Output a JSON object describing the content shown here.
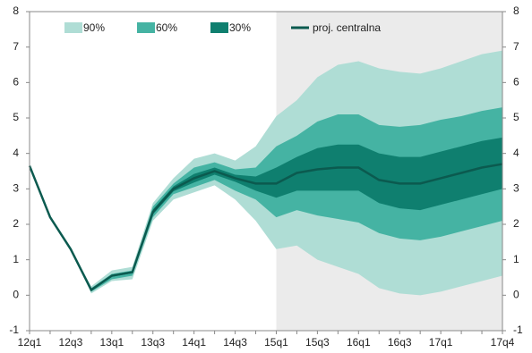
{
  "chart_data": {
    "type": "fan",
    "categories": [
      "12q1",
      null,
      "12q3",
      null,
      "13q1",
      null,
      "13q3",
      null,
      "14q1",
      null,
      "14q3",
      null,
      "15q1",
      null,
      "15q3",
      null,
      "16q1",
      null,
      "16q3",
      null,
      "17q1",
      null,
      null,
      "17q4"
    ],
    "shaded_from": "15q1",
    "ylim": [
      -1,
      8
    ],
    "yticks": [
      -1,
      0,
      1,
      2,
      3,
      4,
      5,
      6,
      7,
      8
    ],
    "bands": [
      {
        "name": "90%",
        "color": "#afddd5",
        "upper": [
          3.65,
          2.2,
          1.3,
          0.25,
          0.7,
          0.8,
          2.6,
          3.3,
          3.85,
          4.0,
          3.8,
          4.2,
          5.05,
          5.5,
          6.15,
          6.5,
          6.6,
          6.4,
          6.3,
          6.25,
          6.4,
          6.6,
          6.8,
          6.9
        ],
        "lower": [
          3.65,
          2.2,
          1.3,
          0.05,
          0.4,
          0.45,
          2.1,
          2.7,
          2.9,
          3.1,
          2.7,
          2.1,
          1.3,
          1.4,
          1.0,
          0.8,
          0.6,
          0.2,
          0.05,
          0.0,
          0.1,
          0.25,
          0.4,
          0.55
        ]
      },
      {
        "name": "60%",
        "color": "#45b3a3",
        "upper": [
          3.65,
          2.2,
          1.3,
          0.2,
          0.6,
          0.7,
          2.5,
          3.15,
          3.6,
          3.75,
          3.55,
          3.6,
          4.2,
          4.5,
          4.9,
          5.1,
          5.1,
          4.8,
          4.75,
          4.8,
          4.95,
          5.05,
          5.2,
          5.3
        ],
        "lower": [
          3.65,
          2.2,
          1.3,
          0.1,
          0.45,
          0.55,
          2.2,
          2.85,
          3.05,
          3.25,
          2.95,
          2.7,
          2.2,
          2.4,
          2.25,
          2.15,
          2.05,
          1.75,
          1.6,
          1.55,
          1.65,
          1.8,
          1.95,
          2.1
        ]
      },
      {
        "name": "30%",
        "color": "#0f7f6f",
        "upper": [
          3.65,
          2.2,
          1.3,
          0.17,
          0.58,
          0.68,
          2.42,
          3.07,
          3.42,
          3.6,
          3.4,
          3.35,
          3.6,
          3.9,
          4.15,
          4.25,
          4.25,
          4.0,
          3.9,
          3.9,
          4.05,
          4.2,
          4.35,
          4.45
        ],
        "lower": [
          3.65,
          2.2,
          1.3,
          0.13,
          0.52,
          0.62,
          2.28,
          2.93,
          3.18,
          3.4,
          3.2,
          2.95,
          2.75,
          2.95,
          2.95,
          2.95,
          2.95,
          2.6,
          2.45,
          2.4,
          2.55,
          2.7,
          2.85,
          3.0
        ]
      }
    ],
    "line": {
      "name": "proj. centralna",
      "color": "#0b5a4f",
      "values": [
        3.65,
        2.2,
        1.3,
        0.15,
        0.55,
        0.65,
        2.35,
        3.0,
        3.3,
        3.5,
        3.3,
        3.15,
        3.15,
        3.45,
        3.55,
        3.6,
        3.6,
        3.25,
        3.15,
        3.15,
        3.3,
        3.45,
        3.6,
        3.7
      ]
    }
  }
}
